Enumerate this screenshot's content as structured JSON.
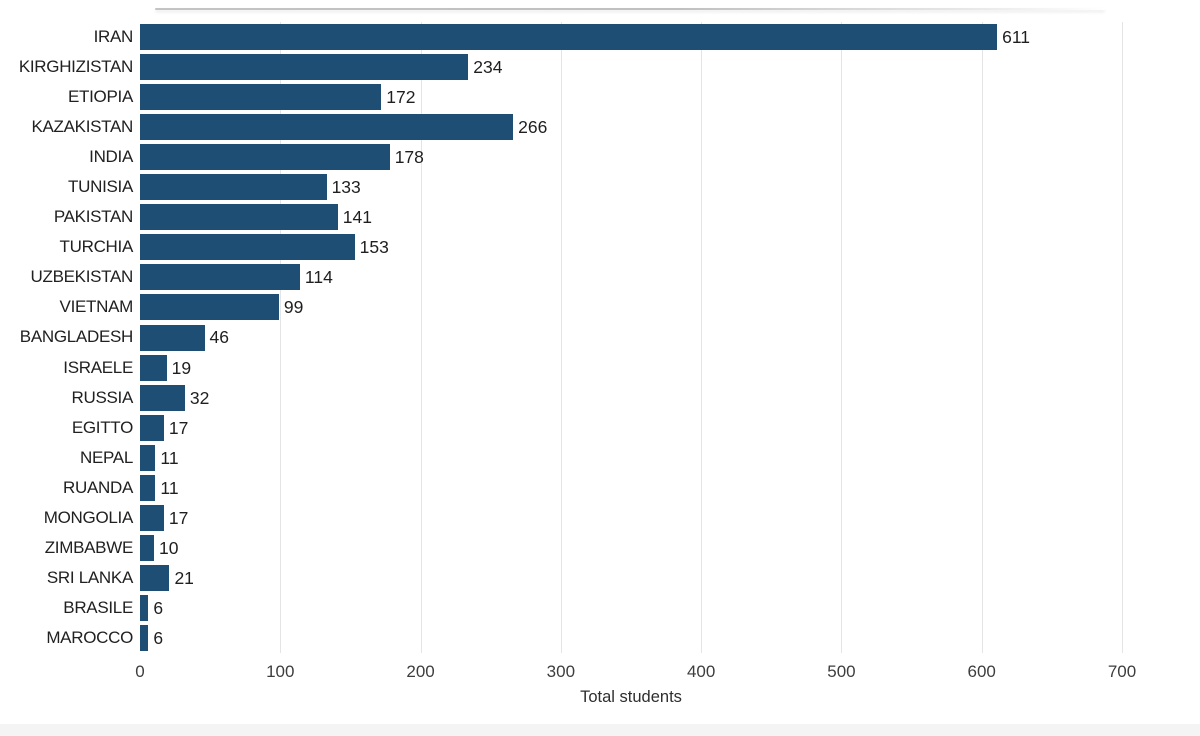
{
  "chart_data": {
    "type": "bar",
    "orientation": "horizontal",
    "xlabel": "Total students",
    "categories": [
      "IRAN",
      "KIRGHIZISTAN",
      "ETIOPIA",
      "KAZAKISTAN",
      "INDIA",
      "TUNISIA",
      "PAKISTAN",
      "TURCHIA",
      "UZBEKISTAN",
      "VIETNAM",
      "BANGLADESH",
      "ISRAELE",
      "RUSSIA",
      "EGITTO",
      "NEPAL",
      "RUANDA",
      "MONGOLIA",
      "ZIMBABWE",
      "SRI LANKA",
      "BRASILE",
      "MAROCCO"
    ],
    "values": [
      611,
      234,
      172,
      266,
      178,
      133,
      141,
      153,
      114,
      99,
      46,
      19,
      32,
      17,
      11,
      11,
      17,
      10,
      21,
      6,
      6
    ],
    "data_labels": [
      "611",
      "234",
      "172",
      "266",
      "178",
      "133",
      "141",
      "153",
      "114",
      "99",
      "46",
      "19",
      "32",
      "17",
      "11",
      "11",
      "17",
      "10",
      "21",
      "6",
      "6"
    ],
    "xlim": [
      0,
      700
    ],
    "xticks": [
      0,
      100,
      200,
      300,
      400,
      500,
      600,
      700
    ],
    "grid": true,
    "legend": false,
    "colors": {
      "bar": "#1f4e75",
      "gridline": "#e4e4e4",
      "category_label": "#212121",
      "value_label": "#1f1f1f",
      "tick_label": "#3d3d3d",
      "axis_title": "#2e2e2e"
    }
  }
}
